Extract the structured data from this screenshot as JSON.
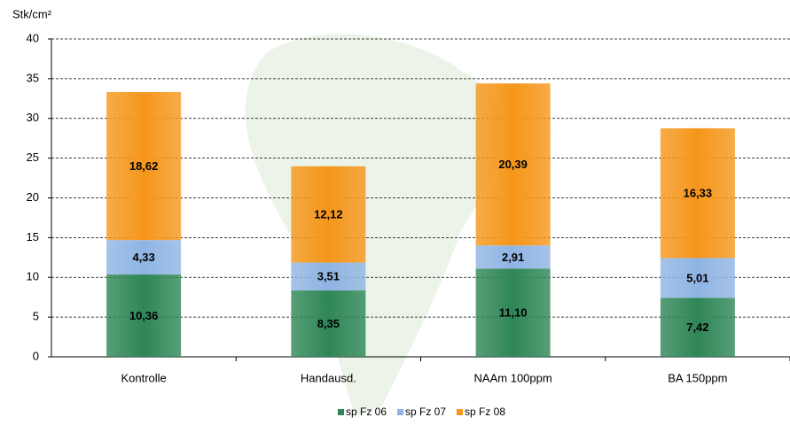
{
  "chart_data": {
    "type": "stacked_bar",
    "y_label": "Stk/cm²",
    "categories": [
      "Kontrolle",
      "Handausd.",
      "NAAm 100ppm",
      "BA 150ppm"
    ],
    "series": [
      {
        "name": "sp Fz 06",
        "color": "#2e8656",
        "values": [
          10.36,
          8.35,
          11.1,
          7.42
        ],
        "value_labels": [
          "10,36",
          "8,35",
          "11,10",
          "7,42"
        ]
      },
      {
        "name": "sp Fz 07",
        "color": "#8fb4e3",
        "values": [
          4.33,
          3.51,
          2.91,
          5.01
        ],
        "value_labels": [
          "4,33",
          "3,51",
          "2,91",
          "5,01"
        ]
      },
      {
        "name": "sp Fz 08",
        "color": "#f5961a",
        "values": [
          18.62,
          12.12,
          20.39,
          16.33
        ],
        "value_labels": [
          "18,62",
          "12,12",
          "20,39",
          "16,33"
        ]
      }
    ],
    "ylim": [
      0,
      40
    ],
    "yticks": [
      0,
      5,
      10,
      15,
      20,
      25,
      30,
      35,
      40
    ],
    "grid": true
  }
}
